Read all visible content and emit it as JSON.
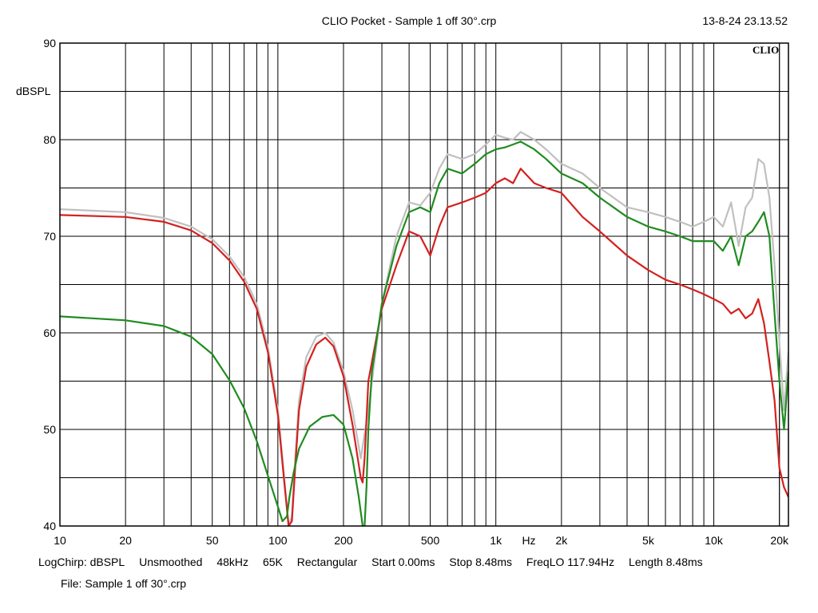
{
  "header": {
    "title": "CLIO Pocket - Sample 1 off 30°.crp",
    "timestamp": "13-8-24 23.13.52",
    "logo": "CLIO"
  },
  "footer": {
    "items": [
      "LogChirp:  dBSPL",
      "Unsmoothed",
      "48kHz",
      "65K",
      "Rectangular",
      "Start 0.00ms",
      "Stop 8.48ms",
      "FreqLO 117.94Hz",
      "Length 8.48ms"
    ],
    "file": "File: Sample 1 off 30°.crp"
  },
  "colors": {
    "grid": "#000000",
    "background": "#ffffff"
  },
  "chart_data": {
    "type": "line",
    "title": "",
    "xlabel": "Hz",
    "ylabel": "dBSPL",
    "xscale": "log",
    "xlim": [
      10,
      22000
    ],
    "ylim": [
      40,
      90
    ],
    "grid": true,
    "x_ticks": [
      10,
      20,
      50,
      100,
      200,
      500,
      1000,
      2000,
      5000,
      10000,
      20000
    ],
    "x_tick_labels": [
      "10",
      "20",
      "50",
      "100",
      "200",
      "500",
      "1k",
      "2k",
      "5k",
      "10k",
      "20k"
    ],
    "y_ticks": [
      40,
      50,
      60,
      70,
      80,
      90
    ],
    "y_tick_labels": [
      "40",
      "50",
      "60",
      "70",
      "80",
      "90"
    ],
    "series": [
      {
        "color": "#c0c0c0",
        "x": [
          10,
          20,
          30,
          40,
          50,
          60,
          70,
          80,
          90,
          100,
          107,
          112,
          116,
          120,
          125,
          135,
          150,
          165,
          180,
          200,
          220,
          240,
          260,
          300,
          350,
          400,
          450,
          500,
          550,
          600,
          700,
          800,
          900,
          1000,
          1100,
          1200,
          1300,
          1500,
          1700,
          2000,
          2500,
          3000,
          4000,
          5000,
          6000,
          7000,
          8000,
          9000,
          10000,
          11000,
          12000,
          13000,
          14000,
          15000,
          16000,
          17000,
          18000,
          19000,
          20000,
          21000,
          22000
        ],
        "y": [
          72.8,
          72.5,
          71.9,
          71.0,
          69.7,
          67.9,
          65.8,
          63.0,
          58.5,
          52.0,
          45.0,
          40.0,
          41.0,
          47.0,
          53.0,
          57.5,
          59.6,
          60.0,
          59.0,
          56.0,
          52.0,
          47.0,
          52.0,
          63.0,
          70.0,
          73.5,
          73.2,
          74.5,
          77.0,
          78.5,
          78.0,
          78.5,
          79.5,
          80.5,
          80.2,
          80.0,
          80.8,
          80.0,
          79.0,
          77.5,
          76.5,
          75.0,
          73.0,
          72.5,
          72.0,
          71.5,
          71.0,
          71.5,
          72.0,
          71.0,
          73.5,
          69.0,
          73.0,
          74.0,
          78.0,
          77.5,
          74.0,
          67.0,
          59.0,
          52.0,
          58.0
        ]
      },
      {
        "color": "#d42020",
        "x": [
          10,
          20,
          30,
          40,
          50,
          60,
          70,
          80,
          90,
          100,
          107,
          112,
          116,
          120,
          125,
          135,
          150,
          165,
          180,
          200,
          220,
          240,
          245,
          250,
          260,
          300,
          350,
          400,
          450,
          500,
          550,
          600,
          700,
          800,
          900,
          1000,
          1100,
          1200,
          1300,
          1500,
          1700,
          2000,
          2500,
          3000,
          4000,
          5000,
          6000,
          7000,
          8000,
          9000,
          10000,
          11000,
          12000,
          13000,
          14000,
          15000,
          16000,
          17000,
          18000,
          19000,
          20000,
          21000,
          22000
        ],
        "y": [
          72.2,
          72.0,
          71.5,
          70.6,
          69.3,
          67.5,
          65.3,
          62.5,
          58.0,
          51.5,
          44.5,
          40.0,
          40.5,
          46.0,
          52.0,
          56.5,
          58.8,
          59.5,
          58.6,
          55.5,
          50.5,
          45.0,
          44.5,
          47.0,
          55.0,
          62.5,
          67.0,
          70.5,
          70.0,
          68.0,
          71.0,
          73.0,
          73.5,
          74.0,
          74.5,
          75.5,
          76.0,
          75.5,
          77.0,
          75.5,
          75.0,
          74.5,
          72.0,
          70.5,
          68.0,
          66.5,
          65.5,
          65.0,
          64.5,
          64.0,
          63.5,
          63.0,
          62.0,
          62.5,
          61.5,
          62.0,
          63.5,
          61.0,
          57.0,
          53.0,
          46.0,
          44.0,
          43.0
        ]
      },
      {
        "color": "#1f8c1f",
        "x": [
          10,
          20,
          30,
          40,
          50,
          60,
          70,
          80,
          90,
          100,
          105,
          110,
          113,
          118,
          125,
          140,
          160,
          180,
          200,
          220,
          235,
          245,
          250,
          255,
          260,
          270,
          300,
          350,
          400,
          450,
          500,
          550,
          600,
          700,
          800,
          900,
          1000,
          1100,
          1200,
          1300,
          1500,
          1700,
          2000,
          2500,
          3000,
          4000,
          5000,
          6000,
          7000,
          8000,
          9000,
          10000,
          11000,
          12000,
          13000,
          14000,
          15000,
          16000,
          17000,
          18000,
          19000,
          20000,
          21000,
          22000
        ],
        "y": [
          61.7,
          61.3,
          60.7,
          59.6,
          57.8,
          55.1,
          52.2,
          48.8,
          45.2,
          42.0,
          40.5,
          41.0,
          43.0,
          45.5,
          48.0,
          50.3,
          51.3,
          51.5,
          50.5,
          47.0,
          43.0,
          40.0,
          40.0,
          44.0,
          50.0,
          56.0,
          63.0,
          69.0,
          72.5,
          73.0,
          72.5,
          75.5,
          77.0,
          76.5,
          77.5,
          78.5,
          79.0,
          79.2,
          79.5,
          79.8,
          79.0,
          78.0,
          76.5,
          75.5,
          74.0,
          72.0,
          71.0,
          70.5,
          70.0,
          69.5,
          69.5,
          69.5,
          68.5,
          70.0,
          67.0,
          70.0,
          70.5,
          71.5,
          72.5,
          70.0,
          62.0,
          55.0,
          50.0,
          56.0
        ]
      }
    ]
  }
}
